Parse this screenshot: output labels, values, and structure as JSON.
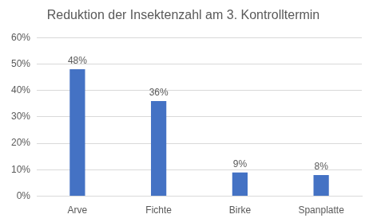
{
  "chart_data": {
    "type": "bar",
    "title": "Reduktion der Insektenzahl am 3. Kontrolltermin",
    "categories": [
      "Arve",
      "Fichte",
      "Birke",
      "Spanplatte"
    ],
    "values": [
      48,
      36,
      9,
      8
    ],
    "value_labels": [
      "48%",
      "36%",
      "9%",
      "8%"
    ],
    "color": "#4472c4",
    "ylim": [
      0,
      60
    ],
    "yticks": [
      {
        "value": 0,
        "label": "0%"
      },
      {
        "value": 10,
        "label": "10%"
      },
      {
        "value": 20,
        "label": "20%"
      },
      {
        "value": 30,
        "label": "30%"
      },
      {
        "value": 40,
        "label": "40%"
      },
      {
        "value": 50,
        "label": "50%"
      },
      {
        "value": 60,
        "label": "60%"
      }
    ],
    "grid": true,
    "data_labels": true
  }
}
